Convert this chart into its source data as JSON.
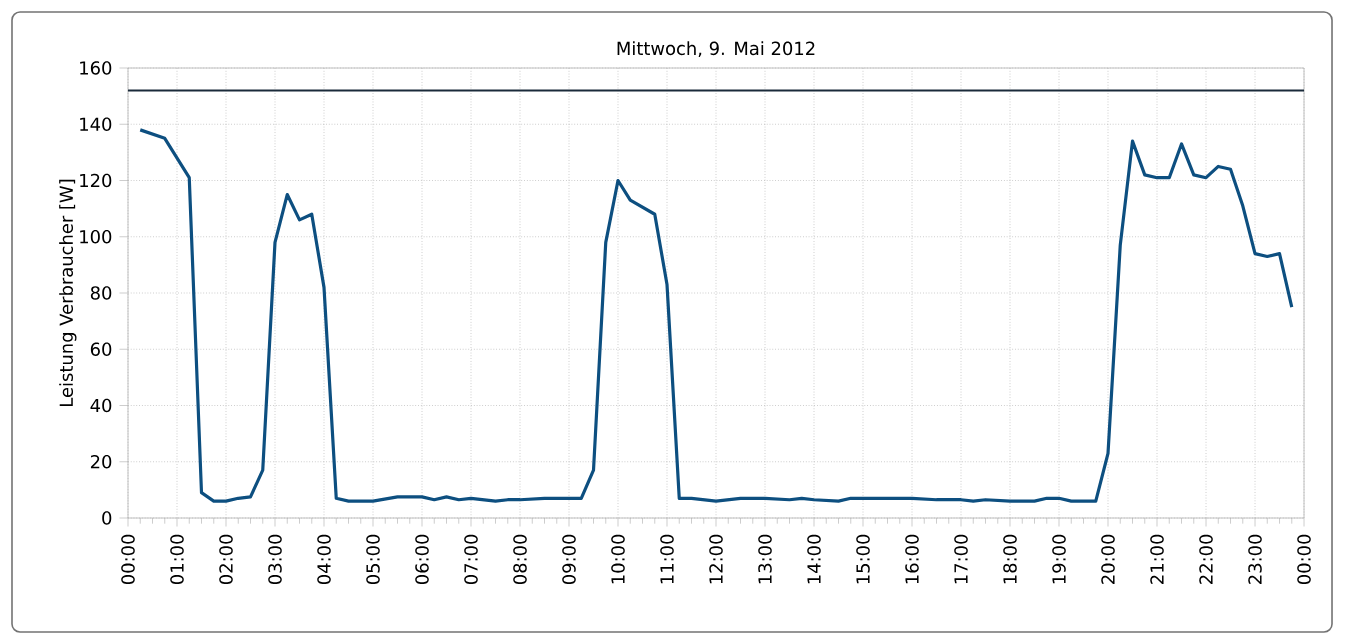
{
  "chart_data": {
    "type": "line",
    "title": "Mittwoch, 9. Mai 2012",
    "ylabel": "Leistung Verbraucher [W]",
    "x": [
      0.25,
      0.75,
      1.0,
      1.25,
      1.5,
      1.75,
      2.0,
      2.25,
      2.5,
      2.75,
      3.0,
      3.25,
      3.5,
      3.75,
      4.0,
      4.25,
      4.5,
      5.0,
      5.5,
      6.0,
      6.25,
      6.5,
      6.75,
      7.0,
      7.5,
      7.75,
      8.0,
      8.5,
      9.0,
      9.25,
      9.5,
      9.75,
      10.0,
      10.25,
      10.75,
      11.0,
      11.25,
      11.5,
      12.0,
      12.5,
      13.0,
      13.5,
      13.75,
      14.0,
      14.5,
      14.75,
      15.0,
      16.0,
      16.5,
      17.0,
      17.25,
      17.5,
      18.0,
      18.5,
      18.75,
      19.0,
      19.25,
      19.75,
      20.0,
      20.25,
      20.5,
      20.75,
      21.0,
      21.25,
      21.5,
      21.75,
      22.0,
      22.25,
      22.5,
      22.75,
      23.0,
      23.25,
      23.5,
      23.75
    ],
    "series": [
      {
        "color": "#0d4f80",
        "values": [
          138,
          135,
          128,
          121,
          9,
          6,
          6,
          7,
          7.5,
          17,
          98,
          115,
          106,
          108,
          82,
          7,
          6,
          6,
          7.5,
          7.5,
          6.5,
          7.5,
          6.5,
          7,
          6,
          6.5,
          6.5,
          7,
          7,
          7,
          17,
          98,
          120,
          113,
          108,
          83,
          7,
          7,
          6,
          7,
          7,
          6.5,
          7,
          6.5,
          6,
          7,
          7,
          7,
          6.5,
          6.5,
          6,
          6.5,
          6,
          6,
          7,
          7,
          6,
          6,
          23,
          97,
          134,
          122,
          121,
          121,
          133,
          122,
          121,
          125,
          124,
          111,
          94,
          93,
          94,
          75
        ]
      }
    ],
    "xlim": [
      0,
      24
    ],
    "ylim": [
      0,
      160
    ],
    "xticks": [
      {
        "value": 0,
        "label": "00:00"
      },
      {
        "value": 1,
        "label": "01:00"
      },
      {
        "value": 2,
        "label": "02:00"
      },
      {
        "value": 3,
        "label": "03:00"
      },
      {
        "value": 4,
        "label": "04:00"
      },
      {
        "value": 5,
        "label": "05:00"
      },
      {
        "value": 6,
        "label": "06:00"
      },
      {
        "value": 7,
        "label": "07:00"
      },
      {
        "value": 8,
        "label": "08:00"
      },
      {
        "value": 9,
        "label": "09:00"
      },
      {
        "value": 10,
        "label": "10:00"
      },
      {
        "value": 11,
        "label": "11:00"
      },
      {
        "value": 12,
        "label": "12:00"
      },
      {
        "value": 13,
        "label": "13:00"
      },
      {
        "value": 14,
        "label": "14:00"
      },
      {
        "value": 15,
        "label": "15:00"
      },
      {
        "value": 16,
        "label": "16:00"
      },
      {
        "value": 17,
        "label": "17:00"
      },
      {
        "value": 18,
        "label": "18:00"
      },
      {
        "value": 19,
        "label": "19:00"
      },
      {
        "value": 20,
        "label": "20:00"
      },
      {
        "value": 21,
        "label": "21:00"
      },
      {
        "value": 22,
        "label": "22:00"
      },
      {
        "value": 23,
        "label": "23:00"
      },
      {
        "value": 24,
        "label": "00:00"
      }
    ],
    "yticks": [
      0,
      20,
      40,
      60,
      80,
      100,
      120,
      140,
      160
    ],
    "ref_lines": [
      {
        "axis": "y",
        "value": 152,
        "color": "#1a2a3a"
      }
    ],
    "grid": true,
    "marker": "none",
    "line_style": "solid"
  }
}
